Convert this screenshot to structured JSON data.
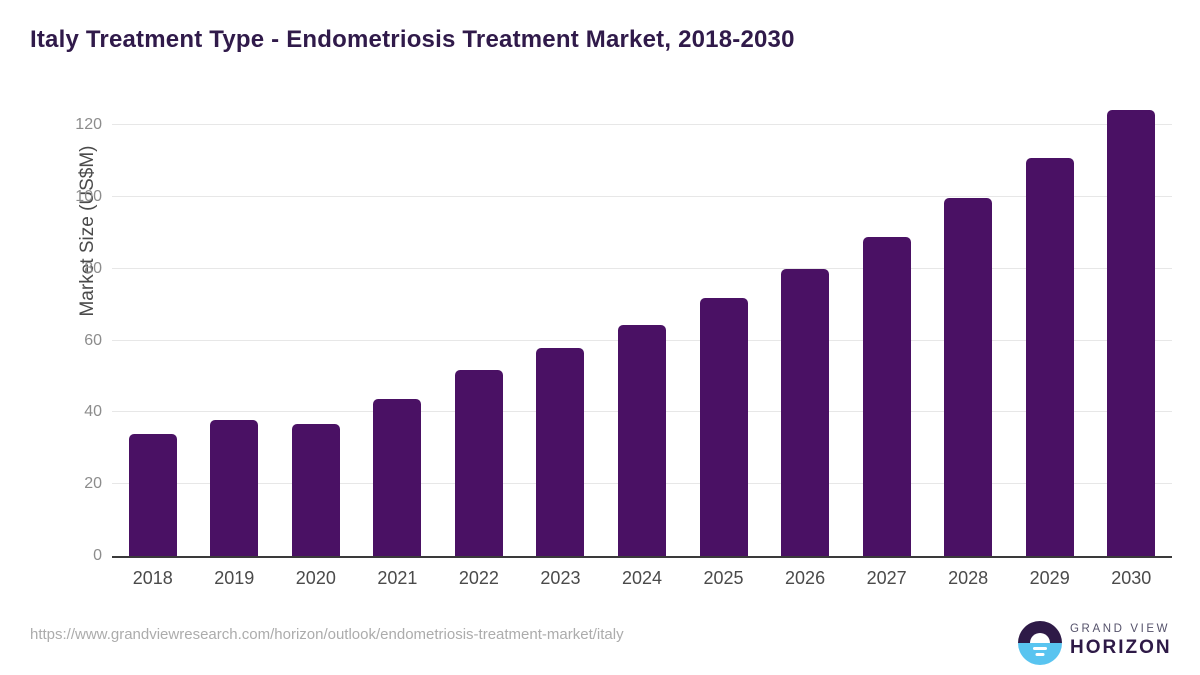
{
  "chart_data": {
    "type": "bar",
    "title": "Italy Treatment Type - Endometriosis Treatment Market, 2018-2030",
    "categories": [
      "2018",
      "2019",
      "2020",
      "2021",
      "2022",
      "2023",
      "2024",
      "2025",
      "2026",
      "2027",
      "2028",
      "2029",
      "2030"
    ],
    "values": [
      33.9,
      37.8,
      36.7,
      43.6,
      51.7,
      57.9,
      64.3,
      71.8,
      80.0,
      88.8,
      99.6,
      110.8,
      124.2
    ],
    "xlabel": "",
    "ylabel": "Market Size (US$M)",
    "ylim": [
      0,
      127
    ],
    "yticks": [
      0,
      20,
      40,
      60,
      80,
      100,
      120
    ],
    "grid": "horizontal",
    "legend": "none",
    "bar_color": "#4A1164"
  },
  "colors": {
    "title": "#301A4A",
    "bar": "#4A1164",
    "gridline": "#E7E7E7",
    "axis_line": "#3A3A3A",
    "y_tick_label": "#8C8C8C",
    "x_tick_label": "#4A4A4A",
    "source_url": "#ACACAC",
    "logo_dark_purple": "#2E1A47",
    "logo_light_blue": "#59C4F0"
  },
  "footer": {
    "source_url": "https://www.grandviewresearch.com/horizon/outlook/endometriosis-treatment-market/italy",
    "logo": {
      "line1": "GRAND VIEW",
      "line2": "HORIZON"
    }
  }
}
